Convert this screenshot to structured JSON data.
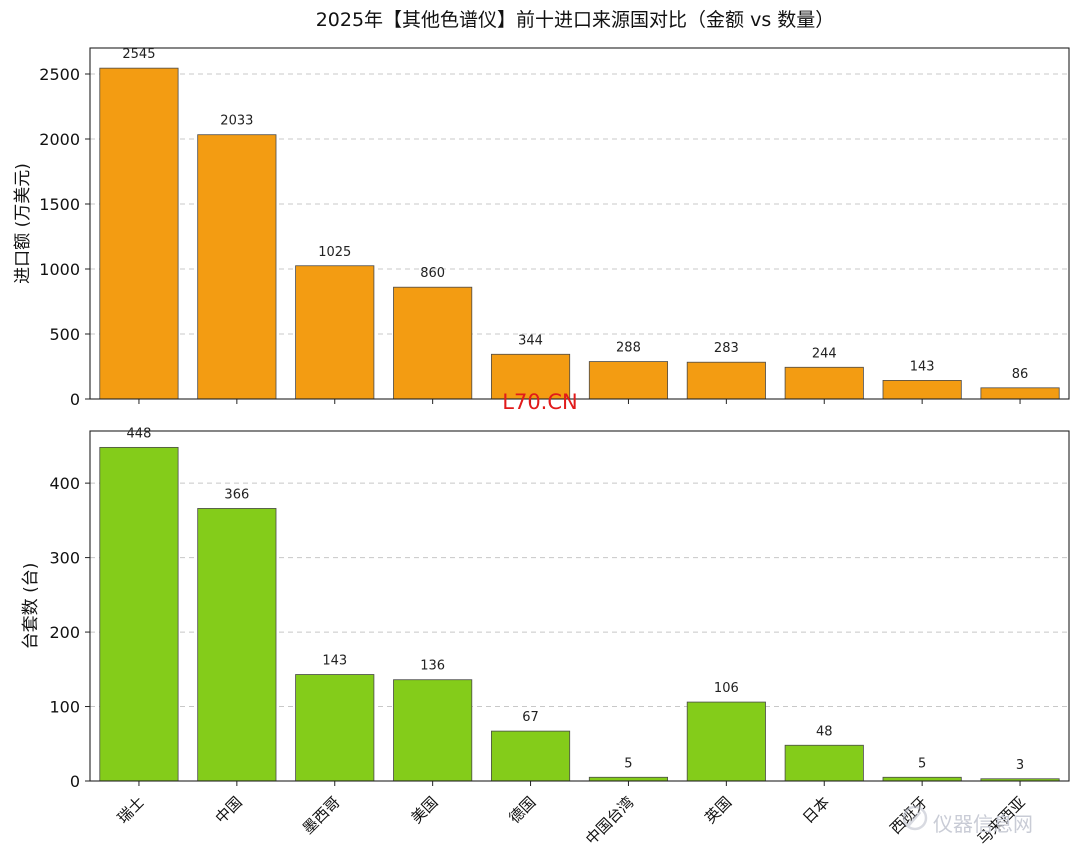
{
  "title": "2025年【其他色谱仪】前十进口来源国对比（金额 vs 数量）",
  "watermark": "L70.CN",
  "logo_text": "仪器信息网",
  "colors": {
    "amount_bar": "#F39C12",
    "count_bar": "#84CC1A",
    "watermark": "#E11B1B"
  },
  "chart_data": [
    {
      "type": "bar",
      "ylabel": "进口额 (万美元)",
      "ylim": [
        0,
        2700
      ],
      "yticks": [
        0,
        500,
        1000,
        1500,
        2000,
        2500
      ],
      "grid": true,
      "categories": [
        "瑞士",
        "中国",
        "墨西哥",
        "美国",
        "德国",
        "中国台湾",
        "英国",
        "日本",
        "西班牙",
        "马来西亚"
      ],
      "values": [
        2545,
        2033,
        1025,
        860,
        344,
        288,
        283,
        244,
        143,
        86
      ]
    },
    {
      "type": "bar",
      "ylabel": "台套数 (台)",
      "ylim": [
        0,
        470
      ],
      "yticks": [
        0,
        100,
        200,
        300,
        400
      ],
      "grid": true,
      "categories": [
        "瑞士",
        "中国",
        "墨西哥",
        "美国",
        "德国",
        "中国台湾",
        "英国",
        "日本",
        "西班牙",
        "马来西亚"
      ],
      "values": [
        448,
        366,
        143,
        136,
        67,
        5,
        106,
        48,
        5,
        3
      ]
    }
  ]
}
